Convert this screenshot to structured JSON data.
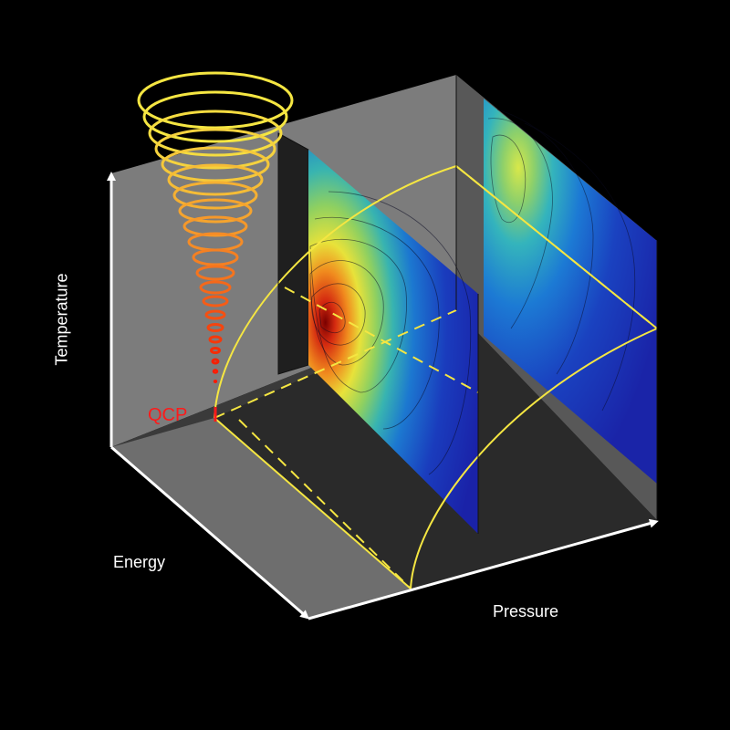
{
  "axes": {
    "temperature": "Temperature",
    "energy": "Energy",
    "pressure": "Pressure"
  },
  "annotations": {
    "qcp": "QCP"
  },
  "colors": {
    "background": "#000000",
    "axis": "#ffffff",
    "boundary": "#f5e642",
    "qcp_label": "#ff1a1a",
    "cone_top": "#f5e642",
    "cone_bottom": "#ff2a00"
  }
}
